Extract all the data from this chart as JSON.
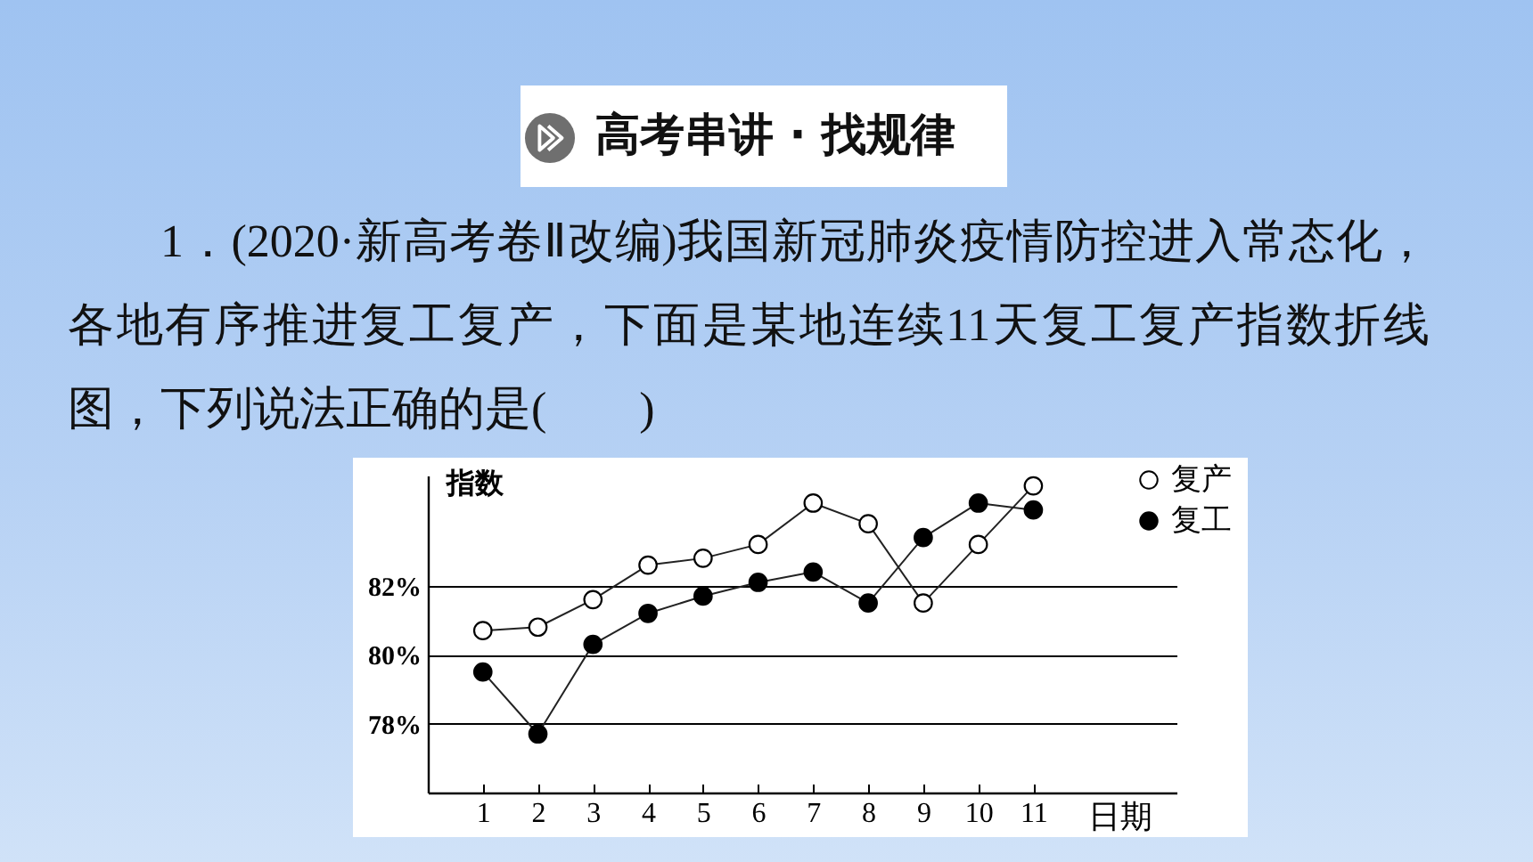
{
  "chart_data": {
    "type": "line",
    "title": "高考串讲 · 找规律",
    "subtitle": "1．(2020·新高考卷Ⅱ改编)我国新冠肺炎疫情防控进入常态化，各地有序推进复工复产，下面是某地连续11天复工复产指数折线图，下列说法正确的是(　　)",
    "xlabel": "日期",
    "ylabel": "指数",
    "x": [
      1,
      2,
      3,
      4,
      5,
      6,
      7,
      8,
      9,
      10,
      11
    ],
    "xlim": [
      0,
      13.6
    ],
    "xticks": [
      1,
      2,
      3,
      4,
      5,
      6,
      7,
      8,
      9,
      10,
      11
    ],
    "ylim": [
      76,
      85.2
    ],
    "yticks": [
      {
        "value": 78,
        "label": "78%"
      },
      {
        "value": 80,
        "label": "80%"
      },
      {
        "value": 82,
        "label": "82%"
      }
    ],
    "grid": "y",
    "legend": "top right",
    "marker": "circle",
    "line_style": "solid",
    "series": [
      {
        "name": "复产",
        "color": "#ffffff",
        "values": [
          80.7,
          80.8,
          81.6,
          82.6,
          82.8,
          83.2,
          84.4,
          83.8,
          81.5,
          83.2,
          84.9
        ]
      },
      {
        "name": "复工",
        "color": "#000000",
        "values": [
          79.5,
          77.7,
          80.3,
          81.2,
          81.7,
          82.1,
          82.4,
          81.5,
          83.4,
          84.4,
          84.2
        ]
      }
    ]
  }
}
